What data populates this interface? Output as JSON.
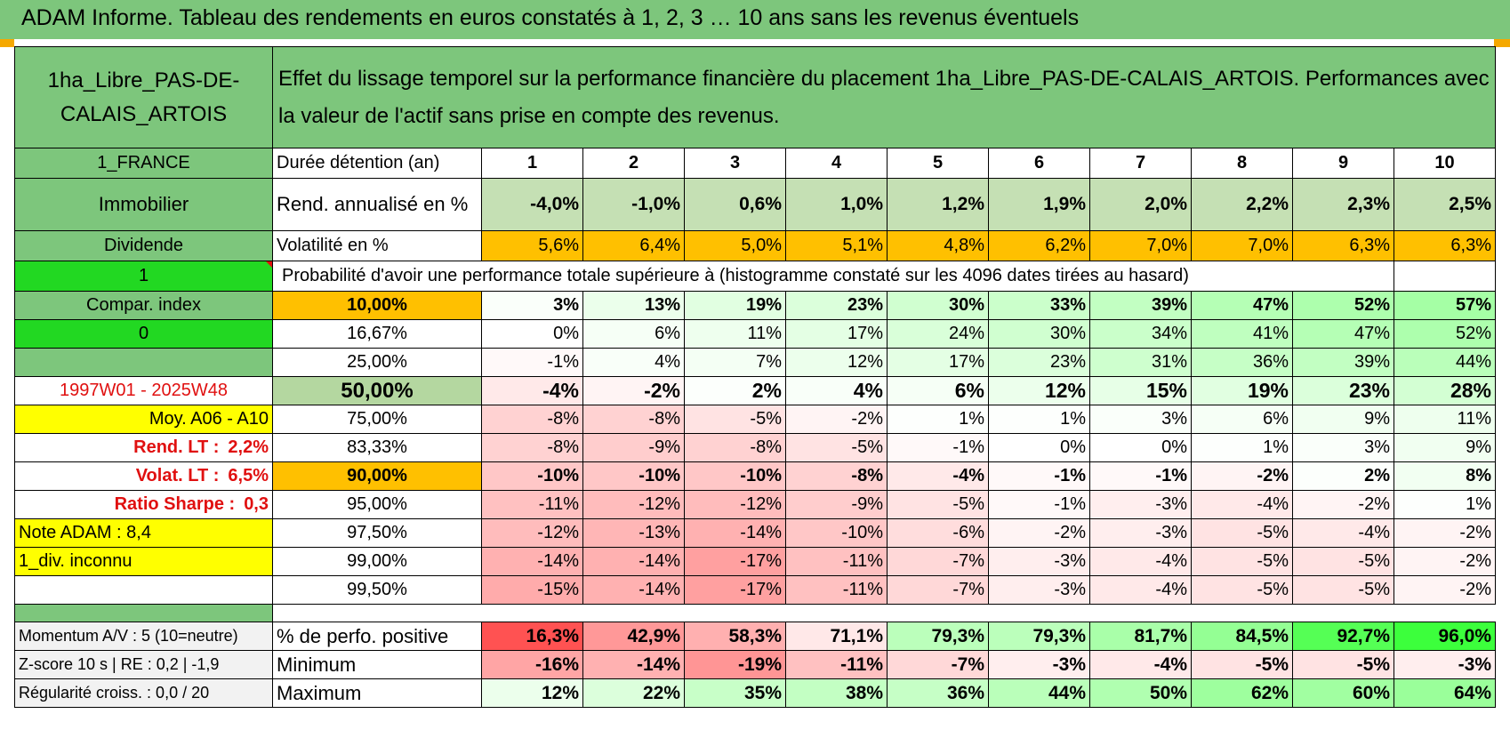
{
  "title": "ADAM Informe. Tableau des rendements en euros constatés à 1, 2, 3 … 10 ans sans les revenus éventuels",
  "header": {
    "asset_name": "1ha_Libre_PAS-DE-CALAIS_ARTOIS",
    "description": "Effet du lissage temporel sur la performance financière du placement 1ha_Libre_PAS-DE-CALAIS_ARTOIS. Performances avec la valeur de l'actif sans prise en compte des revenus."
  },
  "left": {
    "country": "1_FRANCE",
    "category": "Immobilier",
    "dividend": "Dividende",
    "one": "1",
    "compar": "Compar. index",
    "zero": "0",
    "period": "1997W01 - 2025W48",
    "moy": "Moy. A06 - A10",
    "rend_lt_label": "Rend. LT :",
    "rend_lt_value": "2,2%",
    "volat_lt_label": "Volat. LT :",
    "volat_lt_value": "6,5%",
    "sharpe_label": "Ratio Sharpe :",
    "sharpe_value": "0,3",
    "note": "Note ADAM : 8,4",
    "div": "1_div. inconnu",
    "momentum": "Momentum A/V : 5 (10=neutre)",
    "zscore": "Z-score 10 s | RE : 0,2 | -1,9",
    "regularite": "Régularité croiss. : 0,0 / 20"
  },
  "labels": {
    "duree": "Durée détention (an)",
    "rend": "Rend. annualisé en %",
    "volat": "Volatilité en %",
    "proba": "Probabilité d'avoir une performance totale supérieure à (histogramme constaté sur les 4096 dates tirées au hasard)",
    "pos": "% de perfo. positive",
    "min": "Minimum",
    "max": "Maximum"
  },
  "years": [
    "1",
    "2",
    "3",
    "4",
    "5",
    "6",
    "7",
    "8",
    "9",
    "10"
  ],
  "rend": [
    "-4,0%",
    "-1,0%",
    "0,6%",
    "1,0%",
    "1,2%",
    "1,9%",
    "2,0%",
    "2,2%",
    "2,3%",
    "2,5%"
  ],
  "volat": [
    "5,6%",
    "6,4%",
    "5,0%",
    "5,1%",
    "4,8%",
    "6,2%",
    "7,0%",
    "7,0%",
    "6,3%",
    "6,3%"
  ],
  "pct_rows": [
    {
      "level": "10,00%",
      "values": [
        "3%",
        "13%",
        "19%",
        "23%",
        "30%",
        "33%",
        "39%",
        "47%",
        "52%",
        "57%"
      ]
    },
    {
      "level": "16,67%",
      "values": [
        "0%",
        "6%",
        "11%",
        "17%",
        "24%",
        "30%",
        "34%",
        "41%",
        "47%",
        "52%"
      ]
    },
    {
      "level": "25,00%",
      "values": [
        "-1%",
        "4%",
        "7%",
        "12%",
        "17%",
        "23%",
        "31%",
        "36%",
        "39%",
        "44%"
      ]
    },
    {
      "level": "50,00%",
      "values": [
        "-4%",
        "-2%",
        "2%",
        "4%",
        "6%",
        "12%",
        "15%",
        "19%",
        "23%",
        "28%"
      ]
    },
    {
      "level": "75,00%",
      "values": [
        "-8%",
        "-8%",
        "-5%",
        "-2%",
        "1%",
        "1%",
        "3%",
        "6%",
        "9%",
        "11%"
      ]
    },
    {
      "level": "83,33%",
      "values": [
        "-8%",
        "-9%",
        "-8%",
        "-5%",
        "-1%",
        "0%",
        "0%",
        "1%",
        "3%",
        "9%"
      ]
    },
    {
      "level": "90,00%",
      "values": [
        "-10%",
        "-10%",
        "-10%",
        "-8%",
        "-4%",
        "-1%",
        "-1%",
        "-2%",
        "2%",
        "8%"
      ]
    },
    {
      "level": "95,00%",
      "values": [
        "-11%",
        "-12%",
        "-12%",
        "-9%",
        "-5%",
        "-1%",
        "-3%",
        "-4%",
        "-2%",
        "1%"
      ]
    },
    {
      "level": "97,50%",
      "values": [
        "-12%",
        "-13%",
        "-14%",
        "-10%",
        "-6%",
        "-2%",
        "-3%",
        "-5%",
        "-4%",
        "-2%"
      ]
    },
    {
      "level": "99,00%",
      "values": [
        "-14%",
        "-14%",
        "-17%",
        "-11%",
        "-7%",
        "-3%",
        "-4%",
        "-5%",
        "-5%",
        "-2%"
      ]
    },
    {
      "level": "99,50%",
      "values": [
        "-15%",
        "-14%",
        "-17%",
        "-11%",
        "-7%",
        "-3%",
        "-4%",
        "-5%",
        "-5%",
        "-2%"
      ]
    }
  ],
  "pos": [
    "16,3%",
    "42,9%",
    "58,3%",
    "71,1%",
    "79,3%",
    "79,3%",
    "81,7%",
    "84,5%",
    "92,7%",
    "96,0%"
  ],
  "min": [
    "-16%",
    "-14%",
    "-19%",
    "-11%",
    "-7%",
    "-3%",
    "-4%",
    "-5%",
    "-5%",
    "-3%"
  ],
  "max": [
    "12%",
    "22%",
    "35%",
    "38%",
    "36%",
    "44%",
    "50%",
    "62%",
    "60%",
    "64%"
  ],
  "colors": {
    "header_green": "#7dc67c",
    "bright_green": "#22d822",
    "yellow": "#ffff00",
    "orange": "#ffc000",
    "red_text": "#e01010"
  }
}
